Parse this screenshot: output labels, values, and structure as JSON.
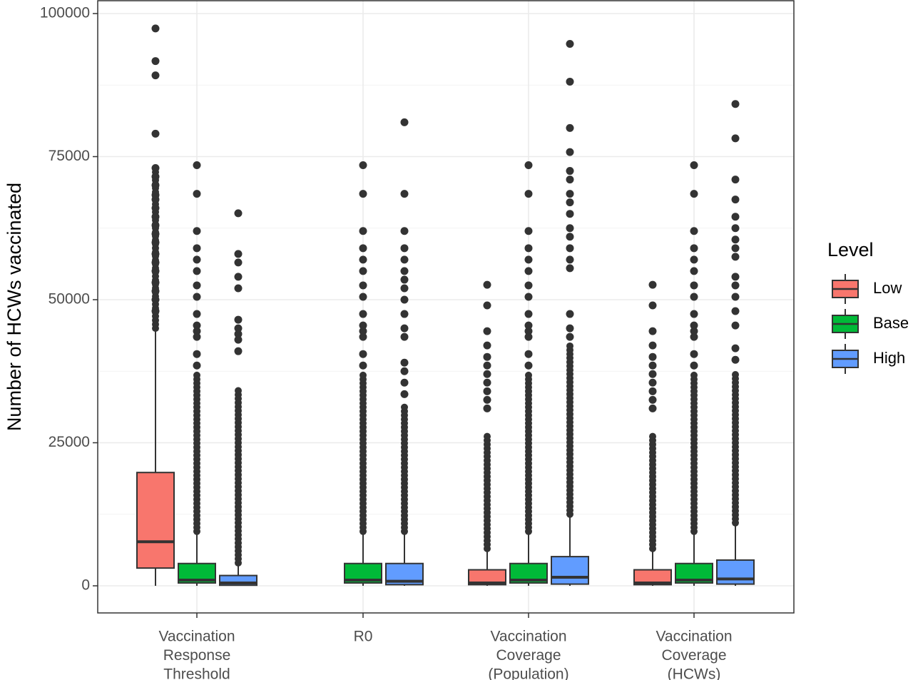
{
  "chart_data": {
    "type": "boxplot",
    "title": "",
    "xlabel": "",
    "ylabel": "Number of HCWs vaccinated",
    "ylim": [
      -9500,
      100000
    ],
    "yticks": [
      0,
      25000,
      50000,
      75000,
      100000
    ],
    "grid": true,
    "legend": {
      "title": "Level",
      "placement": "right",
      "entries": [
        {
          "label": "Low",
          "color": "#F8766D"
        },
        {
          "label": "Base",
          "color": "#00BA38"
        },
        {
          "label": "High",
          "color": "#619CFF"
        }
      ]
    },
    "categories": [
      {
        "label": [
          "Vaccination",
          "Response",
          "Threshold"
        ],
        "levels": [
          "Low",
          "Base",
          "High"
        ]
      },
      {
        "label": [
          "R0"
        ],
        "levels": [
          "Base",
          "High"
        ]
      },
      {
        "label": [
          "Vaccination",
          "Coverage",
          "(Population)"
        ],
        "levels": [
          "Low",
          "Base",
          "High"
        ]
      },
      {
        "label": [
          "Vaccination",
          "Coverage",
          "(HCWs)"
        ],
        "levels": [
          "Low",
          "Base",
          "High"
        ]
      }
    ],
    "boxes": [
      {
        "category": 0,
        "level": "Low",
        "min": 0,
        "q1": 3100,
        "median": 7700,
        "q3": 19800,
        "whisker_high": 44800,
        "outlier_range": [
          45000,
          73000
        ],
        "outliers": [
          48000,
          50000,
          51500,
          53000,
          55000,
          56500,
          58000,
          60000,
          61500,
          63000,
          64500,
          66000,
          67500,
          68300,
          70000,
          71500,
          73000,
          79000,
          89200,
          91700,
          97400
        ]
      },
      {
        "category": 0,
        "level": "Base",
        "min": 0,
        "q1": 500,
        "median": 1000,
        "q3": 3900,
        "whisker_high": 9500,
        "outlier_range": [
          9500,
          37000
        ],
        "outliers": [
          38500,
          40500,
          43500,
          44500,
          45500,
          47500,
          50500,
          52500,
          55000,
          57000,
          59000,
          62000,
          68500,
          73500
        ]
      },
      {
        "category": 0,
        "level": "High",
        "min": 0,
        "q1": 100,
        "median": 500,
        "q3": 1800,
        "whisker_high": 4000,
        "outlier_range": [
          4000,
          34500
        ],
        "outliers": [
          41000,
          43000,
          44000,
          45000,
          46500,
          52000,
          54000,
          56500,
          58000,
          65100
        ]
      },
      {
        "category": 1,
        "level": "Base",
        "min": 0,
        "q1": 500,
        "median": 1000,
        "q3": 3900,
        "whisker_high": 9500,
        "outlier_range": [
          9500,
          37000
        ],
        "outliers": [
          38500,
          40500,
          43500,
          44500,
          45500,
          47500,
          50500,
          52500,
          55000,
          57000,
          59000,
          62000,
          68500,
          73500
        ]
      },
      {
        "category": 1,
        "level": "High",
        "min": 0,
        "q1": 200,
        "median": 800,
        "q3": 3900,
        "whisker_high": 9500,
        "outlier_range": [
          9500,
          31500
        ],
        "outliers": [
          33500,
          35500,
          37500,
          39000,
          43500,
          45000,
          47500,
          50000,
          52000,
          53500,
          55000,
          57000,
          59000,
          62000,
          68500,
          81000
        ]
      },
      {
        "category": 2,
        "level": "Low",
        "min": 0,
        "q1": 200,
        "median": 500,
        "q3": 2800,
        "whisker_high": 6500,
        "outlier_range": [
          6500,
          26500
        ],
        "outliers": [
          31000,
          32500,
          34000,
          35500,
          37000,
          38500,
          40000,
          42000,
          44500,
          49000,
          52600
        ]
      },
      {
        "category": 2,
        "level": "Base",
        "min": 0,
        "q1": 500,
        "median": 1000,
        "q3": 3900,
        "whisker_high": 9500,
        "outlier_range": [
          9500,
          37000
        ],
        "outliers": [
          38500,
          40500,
          43500,
          44500,
          45500,
          47500,
          50500,
          52500,
          55000,
          57000,
          59000,
          62000,
          68500,
          73500
        ]
      },
      {
        "category": 2,
        "level": "High",
        "min": 0,
        "q1": 300,
        "median": 1500,
        "q3": 5100,
        "whisker_high": 12500,
        "outlier_range": [
          12500,
          42000
        ],
        "outliers": [
          43500,
          45000,
          47500,
          55500,
          57000,
          59000,
          61000,
          62500,
          65000,
          67000,
          68500,
          71000,
          72500,
          75800,
          80000,
          88100,
          94700
        ]
      },
      {
        "category": 3,
        "level": "Low",
        "min": 0,
        "q1": 200,
        "median": 500,
        "q3": 2800,
        "whisker_high": 6500,
        "outlier_range": [
          6500,
          26500
        ],
        "outliers": [
          31000,
          32500,
          34000,
          35500,
          37000,
          38500,
          40000,
          42000,
          44500,
          49000,
          52600
        ]
      },
      {
        "category": 3,
        "level": "Base",
        "min": 0,
        "q1": 500,
        "median": 1000,
        "q3": 3900,
        "whisker_high": 9500,
        "outlier_range": [
          9500,
          37000
        ],
        "outliers": [
          38500,
          40500,
          43500,
          44500,
          45500,
          47500,
          50500,
          52500,
          55000,
          57000,
          59000,
          62000,
          68500,
          73500
        ]
      },
      {
        "category": 3,
        "level": "High",
        "min": 0,
        "q1": 300,
        "median": 1200,
        "q3": 4500,
        "whisker_high": 11000,
        "outlier_range": [
          11000,
          37500
        ],
        "outliers": [
          39500,
          41500,
          45500,
          48000,
          50500,
          52500,
          54000,
          57500,
          59000,
          60500,
          62500,
          64500,
          67500,
          71000,
          78200,
          84200
        ]
      }
    ]
  }
}
